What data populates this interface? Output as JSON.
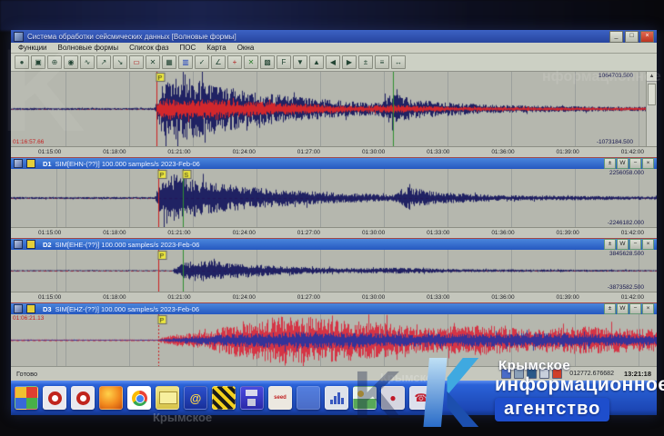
{
  "window": {
    "title": "Система обработки сейсмических данных  [Волновые формы]",
    "controls": {
      "minimize": "_",
      "maximize": "□",
      "close": "×"
    }
  },
  "menu": {
    "items": [
      "Функции",
      "Волновые формы",
      "Список фаз",
      "ПОС",
      "Карта",
      "Окна"
    ]
  },
  "toolbar": {
    "buttons": [
      "●",
      "▣",
      "⊕",
      "◉",
      "∿",
      "↗",
      "↘",
      "▭",
      "✕",
      "▦",
      "▥",
      "✓",
      "∠",
      "+",
      "✕",
      "▩",
      "F",
      "▼",
      "▲",
      "◀",
      "▶",
      "±",
      "≡",
      "↔"
    ]
  },
  "panel_header_buttons": [
    "±",
    "W",
    "−",
    "×"
  ],
  "axes": {
    "labels": [
      "01:15:00",
      "01:18:00",
      "01:21:00",
      "01:24:00",
      "01:27:00",
      "01:30:00",
      "01:33:00",
      "01:36:00",
      "01:39:00",
      "01:42:00"
    ]
  },
  "chart_data": {
    "type": "line",
    "note": "seismograms; envelopes in panels[].traces, normalized x 0-1 over 01:15:00-01:42:00"
  },
  "panels": [
    {
      "max_label": "1064703.500",
      "min_label": "-1073184.500",
      "red_label": "01:16:57.66",
      "centerline": "#c43c3c",
      "traces": [
        {
          "color": "#14155c",
          "envelope": [
            [
              0,
              0.03
            ],
            [
              0.225,
              0.03
            ],
            [
              0.235,
              0.6
            ],
            [
              0.25,
              1.0
            ],
            [
              0.3,
              0.82
            ],
            [
              0.36,
              0.55
            ],
            [
              0.45,
              0.34
            ],
            [
              0.57,
              0.17
            ],
            [
              0.6,
              0.44
            ],
            [
              0.64,
              0.26
            ],
            [
              0.75,
              0.12
            ],
            [
              0.88,
              0.08
            ],
            [
              1,
              0.06
            ]
          ]
        },
        {
          "color": "#e22828",
          "envelope": [
            [
              0,
              0.0
            ],
            [
              0.228,
              0.0
            ],
            [
              0.235,
              0.3
            ],
            [
              0.33,
              0.27
            ],
            [
              0.43,
              0.17
            ],
            [
              0.55,
              0.08
            ],
            [
              0.6,
              0.12
            ],
            [
              0.7,
              0.06
            ],
            [
              1,
              0.04
            ]
          ]
        }
      ],
      "markers": [
        {
          "pos": 0.229,
          "color": "#cc2020",
          "flag": "P"
        },
        {
          "pos": 0.602,
          "color": "#2f8f2f"
        }
      ]
    },
    {
      "header": {
        "tag": "D1",
        "title": "SIM[EHN-(??)] 100.000 samples/s 2023-Feb-06"
      },
      "max_label": "2256058.000",
      "min_label": "-2246182.000",
      "centerline": "#c43c3c",
      "traces": [
        {
          "color": "#14155c",
          "envelope": [
            [
              0,
              0.04
            ],
            [
              0.222,
              0.04
            ],
            [
              0.23,
              0.55
            ],
            [
              0.24,
              0.95
            ],
            [
              0.3,
              0.6
            ],
            [
              0.4,
              0.34
            ],
            [
              0.5,
              0.2
            ],
            [
              0.59,
              0.12
            ],
            [
              0.61,
              0.42
            ],
            [
              0.66,
              0.22
            ],
            [
              0.76,
              0.1
            ],
            [
              1,
              0.06
            ]
          ]
        }
      ],
      "markers": [
        {
          "pos": 0.228,
          "color": "#cc2020",
          "flag": "P"
        },
        {
          "pos": 0.266,
          "color": "#2f8f2f",
          "flag": "S"
        }
      ]
    },
    {
      "header": {
        "tag": "D2",
        "title": "SIM[EHE-(??)] 100.000 samples/s 2023-Feb-06"
      },
      "max_label": "3845628.500",
      "min_label": "-3873582.500",
      "centerline": "#c43c3c",
      "traces": [
        {
          "color": "#14155c",
          "envelope": [
            [
              0,
              0.03
            ],
            [
              0.25,
              0.03
            ],
            [
              0.262,
              0.35
            ],
            [
              0.29,
              0.62
            ],
            [
              0.34,
              0.42
            ],
            [
              0.42,
              0.24
            ],
            [
              0.52,
              0.12
            ],
            [
              0.6,
              0.16
            ],
            [
              0.7,
              0.08
            ],
            [
              1,
              0.04
            ]
          ]
        }
      ],
      "markers": [
        {
          "pos": 0.228,
          "color": "#cc2020",
          "flag": "P"
        },
        {
          "pos": 0.266,
          "color": "#2f8f2f"
        }
      ]
    },
    {
      "header": {
        "tag": "D3",
        "title": "SIM[EHZ-(??)] 100.000 samples/s 2023-Feb-06"
      },
      "red_label": "01:06:21.13",
      "centerline": "#c43c3c",
      "traces": [
        {
          "color": "#d8283c",
          "envelope": [
            [
              0,
              0.03
            ],
            [
              0.225,
              0.03
            ],
            [
              0.24,
              0.2
            ],
            [
              0.3,
              0.35
            ],
            [
              0.36,
              0.8
            ],
            [
              0.42,
              1.0
            ],
            [
              0.5,
              0.9
            ],
            [
              0.58,
              0.72
            ],
            [
              0.65,
              0.5
            ],
            [
              0.72,
              0.66
            ],
            [
              0.8,
              0.46
            ],
            [
              0.88,
              0.58
            ],
            [
              1,
              0.46
            ]
          ]
        },
        {
          "color": "#2733a0",
          "envelope": [
            [
              0,
              0.02
            ],
            [
              0.225,
              0.02
            ],
            [
              0.27,
              0.14
            ],
            [
              0.36,
              0.3
            ],
            [
              0.46,
              0.36
            ],
            [
              0.56,
              0.3
            ],
            [
              0.66,
              0.26
            ],
            [
              0.8,
              0.3
            ],
            [
              1,
              0.22
            ]
          ]
        }
      ],
      "markers": [
        {
          "pos": 0.228,
          "color": "#cc2020",
          "flag": "P",
          "dash": true
        }
      ]
    }
  ],
  "status": {
    "ready": "Готово",
    "readout": "012772.676682",
    "clock": "13:21:18"
  },
  "taskbar": {
    "icons": [
      "start",
      "opera",
      "opera-2",
      "firefox",
      "chrome",
      "folder",
      "mail",
      "hazard",
      "floppy",
      "seed",
      "ghost",
      "chart",
      "picture",
      "pin",
      "phone"
    ],
    "mail_glyph": "@",
    "seed_label": "seed",
    "pin_glyph": "●",
    "phone_glyph": "☎"
  },
  "watermark": {
    "line1": "Крымское",
    "line2": "информационное",
    "line3": "агентство",
    "accent_blue": "#1e4ecc",
    "logo_light": "#3fa9e0",
    "logo_dark": "#1c4fae",
    "faint_k": "K",
    "faint_tr": "нформационное",
    "faint_bl": "Крымское",
    "faint_cb": "Крымское"
  }
}
